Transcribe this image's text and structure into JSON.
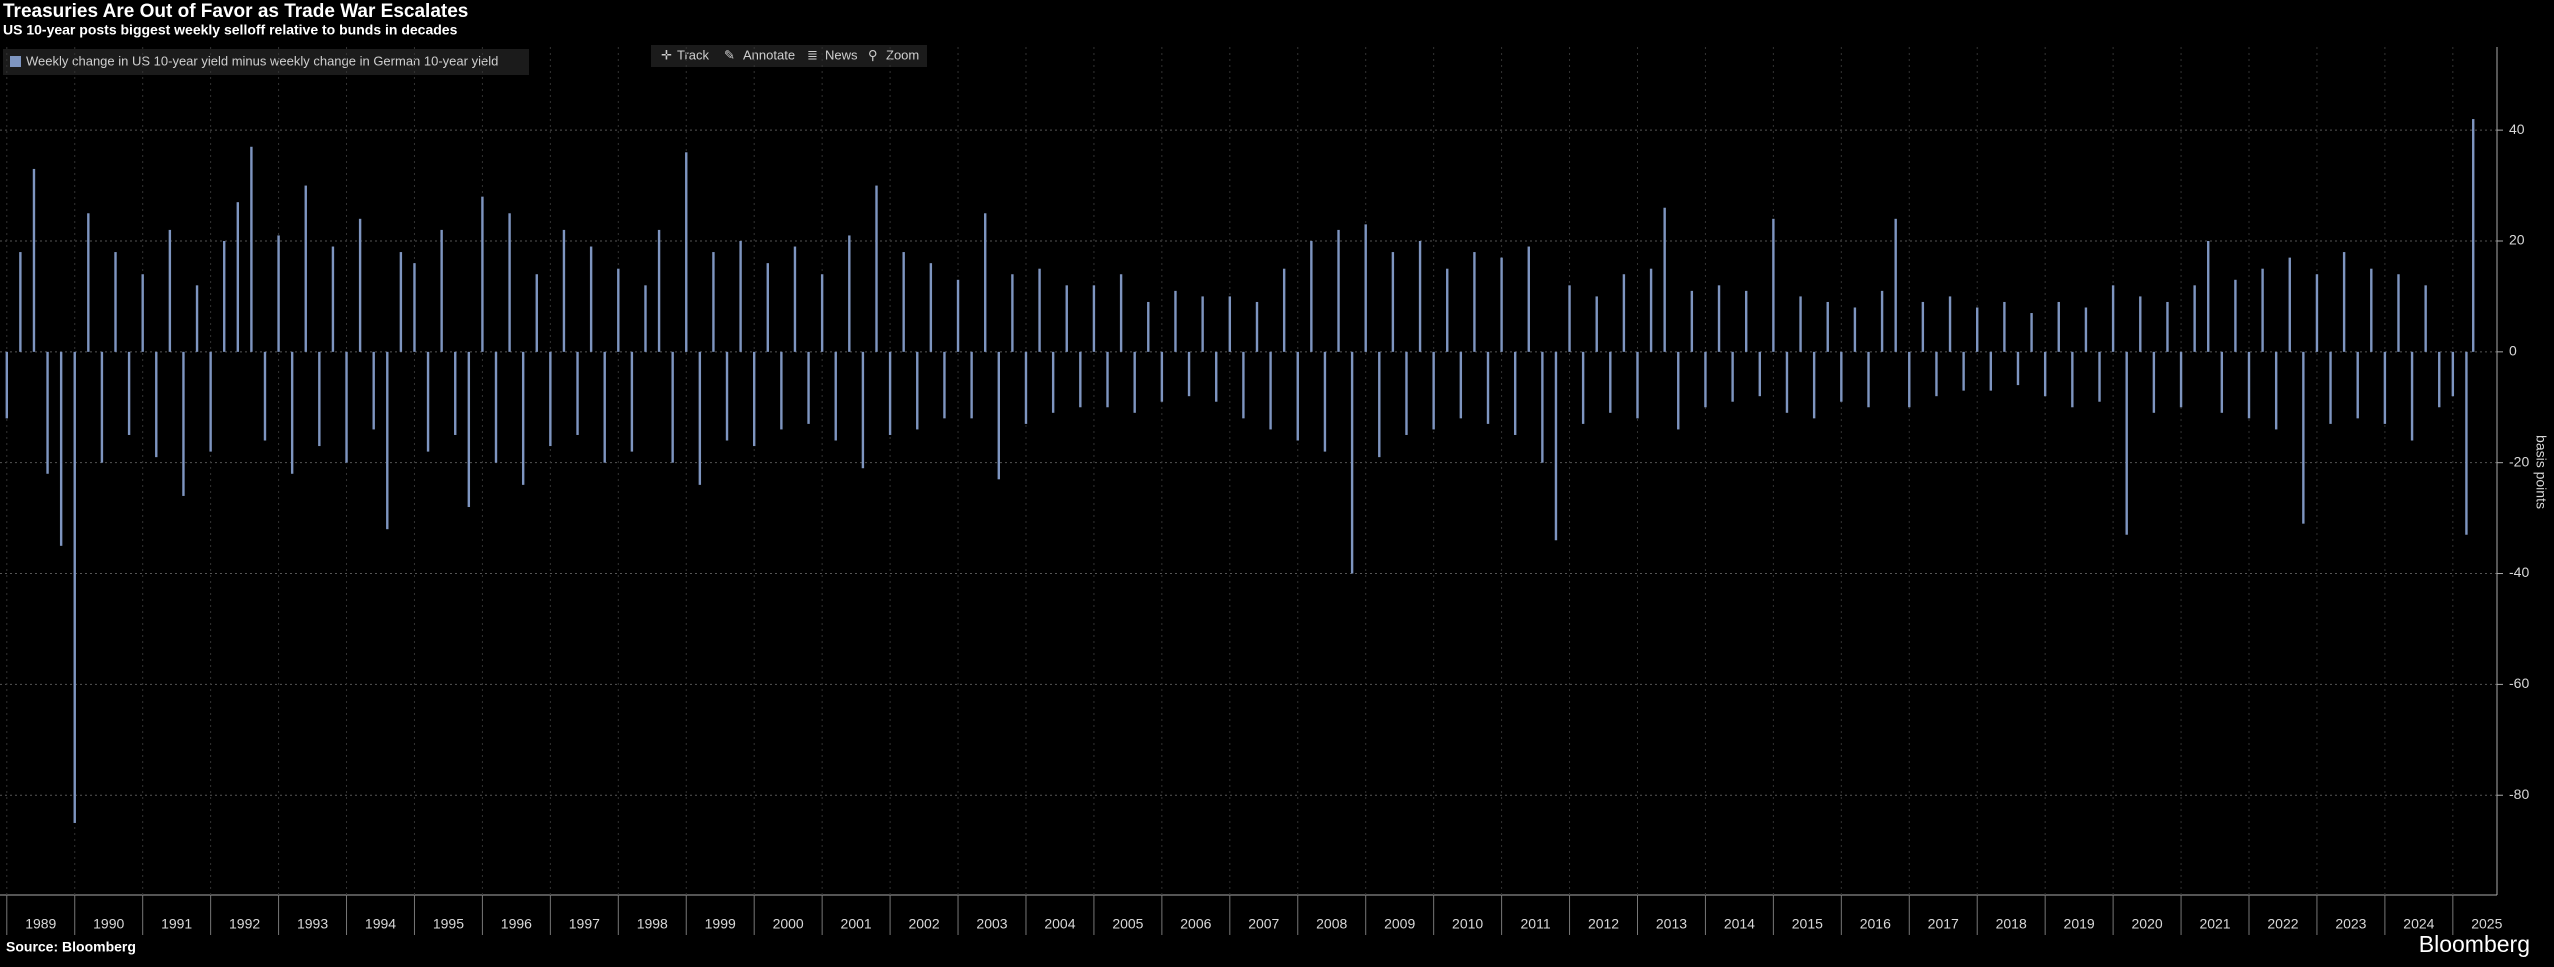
{
  "chart_data": {
    "type": "bar",
    "title": "Treasuries Are Out of Favor as Trade War Escalates",
    "subtitle": "US 10-year posts biggest weekly selloff relative to bunds in decades",
    "y_label": "basis points",
    "source": "Source: Bloomberg",
    "grid": true,
    "legend_position": "top-left",
    "xlim": [
      1988.9,
      2025.65
    ],
    "ylim": [
      -98,
      55
    ],
    "yticks": [
      -80,
      -60,
      -40,
      -20,
      0,
      20,
      40
    ],
    "xticks": [
      1989,
      1990,
      1991,
      1992,
      1993,
      1994,
      1995,
      1996,
      1997,
      1998,
      1999,
      2000,
      2001,
      2002,
      2003,
      2004,
      2005,
      2006,
      2007,
      2008,
      2009,
      2010,
      2011,
      2012,
      2013,
      2014,
      2015,
      2016,
      2017,
      2018,
      2019,
      2020,
      2021,
      2022,
      2023,
      2024,
      2025
    ],
    "x": [
      1989,
      1989.2,
      1989.4,
      1989.6,
      1989.8,
      1990,
      1990.2,
      1990.4,
      1990.6,
      1990.8,
      1991,
      1991.2,
      1991.4,
      1991.6,
      1991.8,
      1992,
      1992.2,
      1992.4,
      1992.6,
      1992.8,
      1993,
      1993.2,
      1993.4,
      1993.6,
      1993.8,
      1994,
      1994.2,
      1994.4,
      1994.6,
      1994.8,
      1995,
      1995.2,
      1995.4,
      1995.6,
      1995.8,
      1996,
      1996.2,
      1996.4,
      1996.6,
      1996.8,
      1997,
      1997.2,
      1997.4,
      1997.6,
      1997.8,
      1998,
      1998.2,
      1998.4,
      1998.6,
      1998.8,
      1999,
      1999.2,
      1999.4,
      1999.6,
      1999.8,
      2000,
      2000.2,
      2000.4,
      2000.6,
      2000.8,
      2001,
      2001.2,
      2001.4,
      2001.6,
      2001.8,
      2002,
      2002.2,
      2002.4,
      2002.6,
      2002.8,
      2003,
      2003.2,
      2003.4,
      2003.6,
      2003.8,
      2004,
      2004.2,
      2004.4,
      2004.6,
      2004.8,
      2005,
      2005.2,
      2005.4,
      2005.6,
      2005.8,
      2006,
      2006.2,
      2006.4,
      2006.6,
      2006.8,
      2007,
      2007.2,
      2007.4,
      2007.6,
      2007.8,
      2008,
      2008.2,
      2008.4,
      2008.6,
      2008.8,
      2009,
      2009.2,
      2009.4,
      2009.6,
      2009.8,
      2010,
      2010.2,
      2010.4,
      2010.6,
      2010.8,
      2011,
      2011.2,
      2011.4,
      2011.6,
      2011.8,
      2012,
      2012.2,
      2012.4,
      2012.6,
      2012.8,
      2013,
      2013.2,
      2013.4,
      2013.6,
      2013.8,
      2014,
      2014.2,
      2014.4,
      2014.6,
      2014.8,
      2015,
      2015.2,
      2015.4,
      2015.6,
      2015.8,
      2016,
      2016.2,
      2016.4,
      2016.6,
      2016.8,
      2017,
      2017.2,
      2017.4,
      2017.6,
      2017.8,
      2018,
      2018.2,
      2018.4,
      2018.6,
      2018.8,
      2019,
      2019.2,
      2019.4,
      2019.6,
      2019.8,
      2020,
      2020.2,
      2020.4,
      2020.6,
      2020.8,
      2021,
      2021.2,
      2021.4,
      2021.6,
      2021.8,
      2022,
      2022.2,
      2022.4,
      2022.6,
      2022.8,
      2023,
      2023.2,
      2023.4,
      2023.6,
      2023.8,
      2024,
      2024.2,
      2024.4,
      2024.6,
      2024.8,
      2025,
      2025.2,
      2025.3
    ],
    "series": [
      {
        "name": "Weekly change in US 10-year yield minus weekly change in German 10-year yield",
        "color": "#7e95c0",
        "values": [
          -12,
          18,
          33,
          -22,
          -35,
          -85,
          25,
          -20,
          18,
          -15,
          14,
          -19,
          22,
          -26,
          12,
          -18,
          20,
          27,
          37,
          -16,
          21,
          -22,
          30,
          -17,
          19,
          -20,
          24,
          -14,
          -32,
          18,
          16,
          -18,
          22,
          -15,
          -28,
          28,
          -20,
          25,
          -24,
          14,
          -17,
          22,
          -15,
          19,
          -20,
          15,
          -18,
          12,
          22,
          -20,
          36,
          -24,
          18,
          -16,
          20,
          -17,
          16,
          -14,
          19,
          -13,
          14,
          -16,
          21,
          -21,
          30,
          -15,
          18,
          -14,
          16,
          -12,
          13,
          -12,
          25,
          -23,
          14,
          -13,
          15,
          -11,
          12,
          -10,
          12,
          -10,
          14,
          -11,
          9,
          -9,
          11,
          -8,
          10,
          -9,
          10,
          -12,
          9,
          -14,
          15,
          -16,
          20,
          -18,
          22,
          -40,
          23,
          -19,
          18,
          -15,
          20,
          -14,
          15,
          -12,
          18,
          -13,
          17,
          -15,
          19,
          -20,
          -34,
          12,
          -13,
          10,
          -11,
          14,
          -12,
          15,
          26,
          -14,
          11,
          -10,
          12,
          -9,
          11,
          -8,
          24,
          -11,
          10,
          -12,
          9,
          -9,
          8,
          -10,
          11,
          24,
          -10,
          9,
          -8,
          10,
          -7,
          8,
          -7,
          9,
          -6,
          7,
          -8,
          9,
          -10,
          8,
          -9,
          12,
          -33,
          10,
          -11,
          9,
          -10,
          12,
          20,
          -11,
          13,
          -12,
          15,
          -14,
          17,
          -31,
          14,
          -13,
          18,
          -12,
          15,
          -13,
          14,
          -16,
          12,
          -10,
          -8,
          -33,
          42
        ]
      }
    ]
  },
  "toolbar": [
    "Track",
    "Annotate",
    "News",
    "Zoom"
  ],
  "brand": "Bloomberg"
}
